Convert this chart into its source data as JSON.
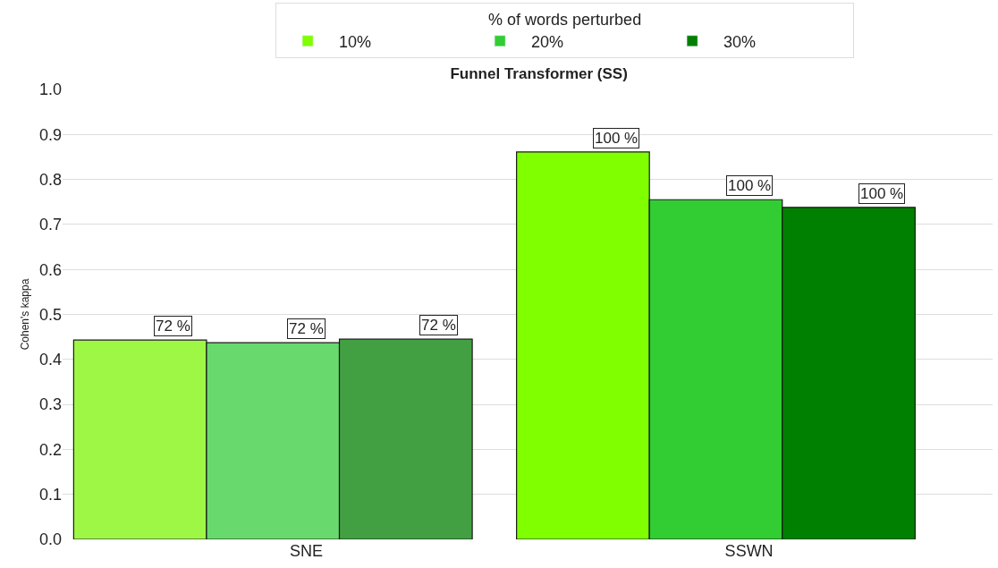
{
  "chart_data": {
    "type": "bar",
    "title": "Funnel Transformer (SS)",
    "ylabel": "Cohen's kappa",
    "legend_title": "% of words perturbed",
    "categories": [
      "SNE",
      "SSWN"
    ],
    "series": [
      {
        "name": "10%",
        "color": "#7fff00",
        "colors": [
          "#9ef745",
          "#7fff00"
        ],
        "values": [
          0.443,
          0.861
        ]
      },
      {
        "name": "20%",
        "color": "#32cd32",
        "colors": [
          "#68da6d",
          "#32cd32"
        ],
        "values": [
          0.437,
          0.755
        ]
      },
      {
        "name": "30%",
        "color": "#008000",
        "colors": [
          "#42a042",
          "#008000"
        ],
        "values": [
          0.445,
          0.738
        ]
      }
    ],
    "annotations": [
      "72 %",
      "72 %",
      "72 %",
      "100 %",
      "100 %",
      "100 %"
    ],
    "ylim": [
      0,
      1.0
    ],
    "yticks": [
      {
        "value": 0,
        "label": "0.0"
      },
      0.1,
      0.2,
      0.3,
      0.4,
      0.5,
      0.6,
      0.7,
      0.8,
      0.9,
      {
        "value": 1,
        "label": "1.0"
      }
    ],
    "grid": "y",
    "legend": "top"
  }
}
